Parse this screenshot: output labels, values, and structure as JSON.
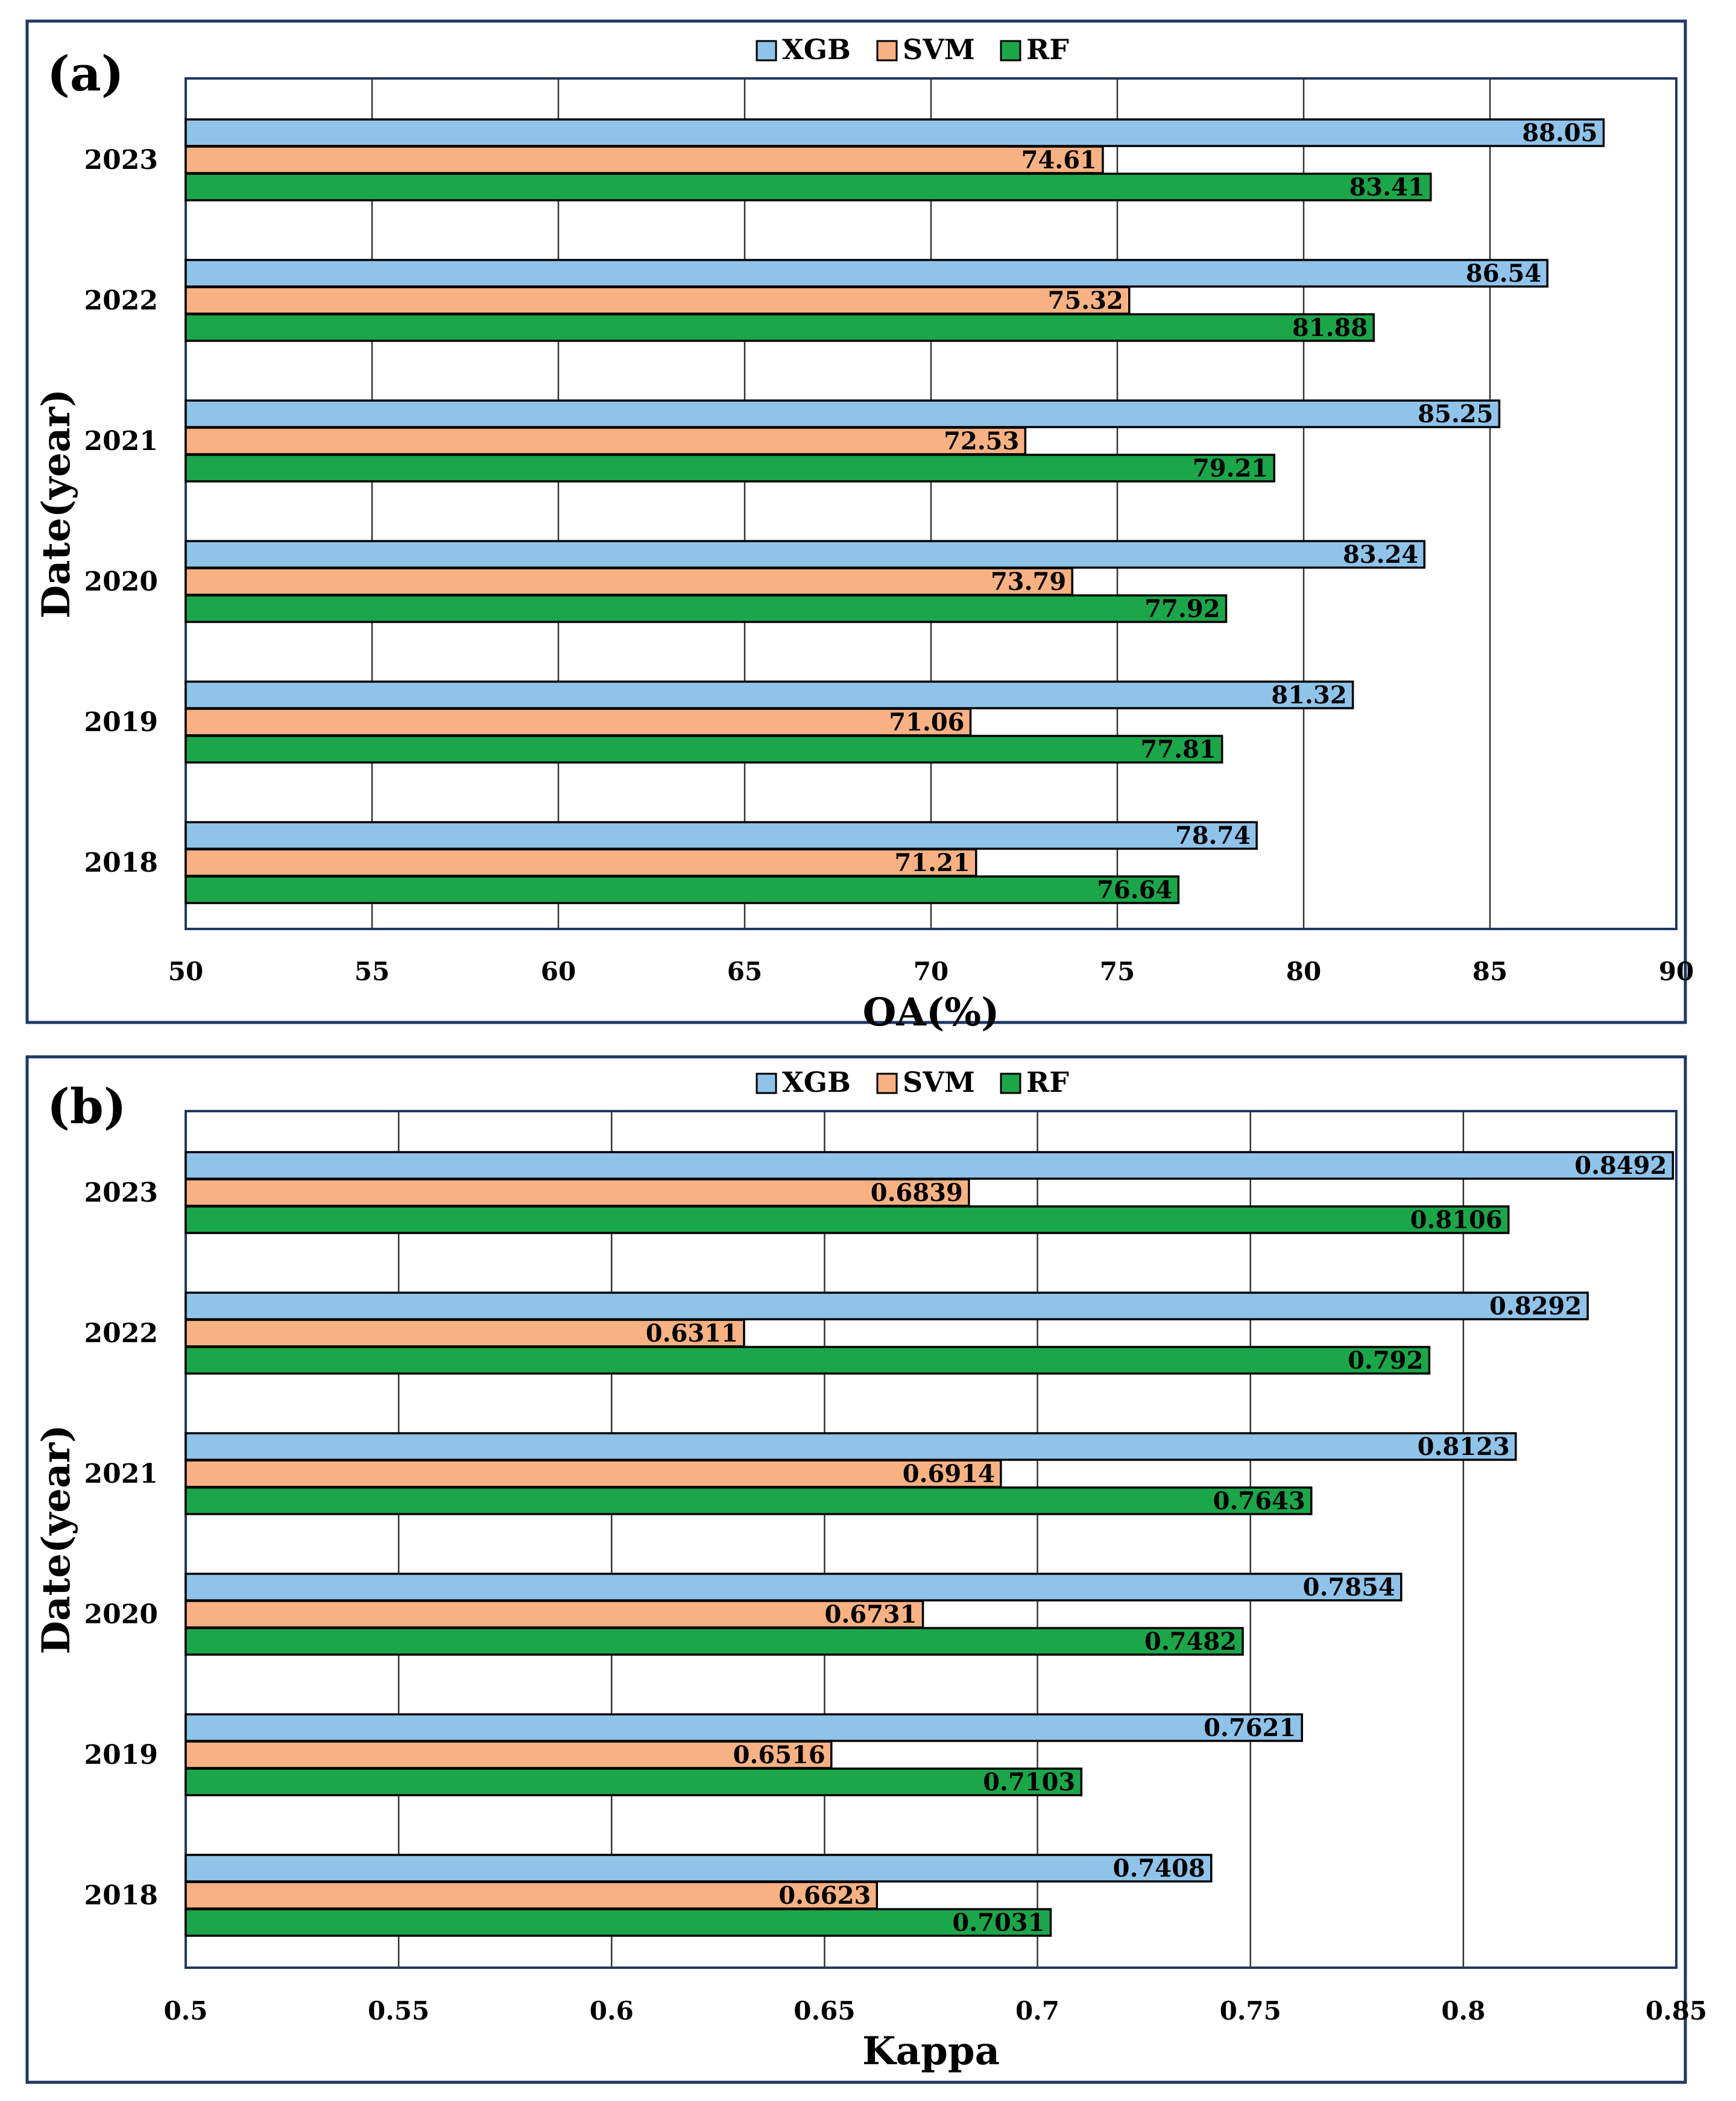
{
  "colors": {
    "XGB": "#8fc3ea",
    "SVM": "#f7b183",
    "RF": "#1ca64a",
    "frame": "#1f3864"
  },
  "chart_data": [
    {
      "panel": "(a)",
      "type": "bar",
      "orientation": "horizontal",
      "xlabel": "OA(%)",
      "ylabel": "Date(year)",
      "xlim": [
        50,
        90
      ],
      "xticks": [
        50,
        55,
        60,
        65,
        70,
        75,
        80,
        85,
        90
      ],
      "tick_labels": [
        "50",
        "55",
        "60",
        "65",
        "70",
        "75",
        "80",
        "85",
        "90"
      ],
      "categories": [
        "2023",
        "2022",
        "2021",
        "2020",
        "2019",
        "2018"
      ],
      "legend": [
        "XGB",
        "SVM",
        "RF"
      ],
      "series": [
        {
          "name": "XGB",
          "values": [
            88.05,
            86.54,
            85.25,
            83.24,
            81.32,
            78.74
          ],
          "labels": [
            "88.05",
            "86.54",
            "85.25",
            "83.24",
            "81.32",
            "78.74"
          ]
        },
        {
          "name": "SVM",
          "values": [
            74.61,
            75.32,
            72.53,
            73.79,
            71.06,
            71.21
          ],
          "labels": [
            "74.61",
            "75.32",
            "72.53",
            "73.79",
            "71.06",
            "71.21"
          ]
        },
        {
          "name": "RF",
          "values": [
            83.41,
            81.88,
            79.21,
            77.92,
            77.81,
            76.64
          ],
          "labels": [
            "83.41",
            "81.88",
            "79.21",
            "77.92",
            "77.81",
            "76.64"
          ]
        }
      ]
    },
    {
      "panel": "(b)",
      "type": "bar",
      "orientation": "horizontal",
      "xlabel": "Kappa",
      "ylabel": "Date(year)",
      "xlim": [
        0.5,
        0.85
      ],
      "xticks": [
        0.5,
        0.55,
        0.6,
        0.65,
        0.7,
        0.75,
        0.8,
        0.85
      ],
      "tick_labels": [
        "0.5",
        "0.55",
        "0.6",
        "0.65",
        "0.7",
        "0.75",
        "0.8",
        "0.85"
      ],
      "categories": [
        "2023",
        "2022",
        "2021",
        "2020",
        "2019",
        "2018"
      ],
      "legend": [
        "XGB",
        "SVM",
        "RF"
      ],
      "series": [
        {
          "name": "XGB",
          "values": [
            0.8492,
            0.8292,
            0.8123,
            0.7854,
            0.7621,
            0.7408
          ],
          "labels": [
            "0.8492",
            "0.8292",
            "0.8123",
            "0.7854",
            "0.7621",
            "0.7408"
          ]
        },
        {
          "name": "SVM",
          "values": [
            0.6839,
            0.6311,
            0.6914,
            0.6731,
            0.6516,
            0.6623
          ],
          "labels": [
            "0.6839",
            "0.6311",
            "0.6914",
            "0.6731",
            "0.6516",
            "0.6623"
          ]
        },
        {
          "name": "RF",
          "values": [
            0.8106,
            0.792,
            0.7643,
            0.7482,
            0.7103,
            0.7031
          ],
          "labels": [
            "0.8106",
            "0.792",
            "0.7643",
            "0.7482",
            "0.7103",
            "0.7031"
          ]
        }
      ]
    }
  ]
}
